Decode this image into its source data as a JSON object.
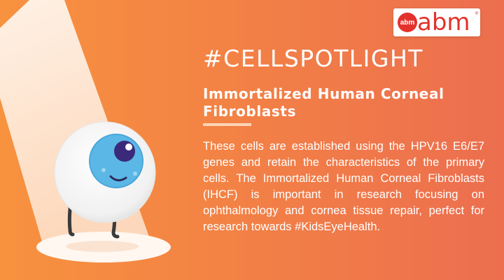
{
  "logo": {
    "badge": "abm",
    "wordmark": "abm",
    "registered": "®"
  },
  "hashtag": "#CELLSPOTLIGHT",
  "subtitle": "Immortalized Human Corneal Fibroblasts",
  "description": "These cells are established using the HPV16 E6/E7 genes and retain the characteristics of the primary cells. The Immortalized Human Corneal Fibroblasts (IHCF) is important in research focusing on ophthalmology and cornea tissue repair, perfect for research towards #KidsEyeHealth.",
  "colors": {
    "background_left": "#f7923f",
    "background_right": "#ec6e4f",
    "spotlight": "#fff3e8",
    "iris": "#5bb7e6",
    "pupil": "#3b2a7a",
    "brand_red": "#e4312b"
  },
  "icons": [
    "spotlight-beam",
    "eyeball-mascot",
    "abm-logo"
  ]
}
